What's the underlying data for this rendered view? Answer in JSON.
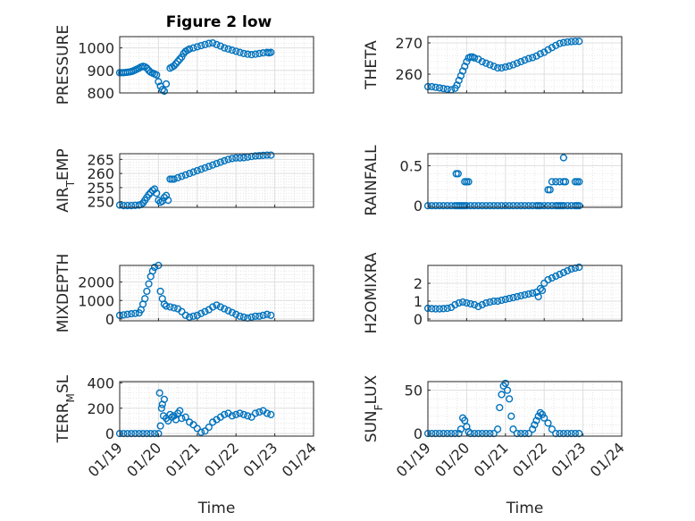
{
  "figure": {
    "title": "Figure 2 low"
  },
  "colors": {
    "marker": "#0072BD",
    "axis": "#262626",
    "grid": "#dfdfdf"
  },
  "time_ticks": [
    "01/19",
    "01/20",
    "01/21",
    "01/22",
    "01/23",
    "01/24"
  ],
  "time_axis_label": "Time",
  "chart_data": [
    {
      "id": "pressure",
      "type": "scatter",
      "ylabel": "PRESSURE",
      "xlim": [
        19,
        24
      ],
      "ylim": [
        800,
        1050
      ],
      "yticks": [
        800,
        900,
        1000
      ],
      "grid": true,
      "xticklabels_visible": false,
      "series": [
        {
          "x": [
            19.0,
            19.05,
            19.1,
            19.15,
            19.2,
            19.25,
            19.3,
            19.35,
            19.4,
            19.45,
            19.5,
            19.55,
            19.6,
            19.65,
            19.7,
            19.75,
            19.8,
            19.85,
            19.9,
            19.95,
            20.0,
            20.05,
            20.1,
            20.15,
            20.2,
            20.3,
            20.35,
            20.4,
            20.45,
            20.5,
            20.55,
            20.6,
            20.65,
            20.7,
            20.75,
            20.8,
            20.9,
            21.0,
            21.1,
            21.2,
            21.3,
            21.4,
            21.5,
            21.6,
            21.7,
            21.8,
            21.9,
            22.0,
            22.1,
            22.2,
            22.3,
            22.4,
            22.5,
            22.6,
            22.7,
            22.8,
            22.85,
            22.9
          ],
          "y": [
            890,
            890,
            890,
            891,
            892,
            893,
            895,
            898,
            902,
            906,
            910,
            915,
            918,
            916,
            910,
            900,
            892,
            888,
            884,
            880,
            850,
            830,
            815,
            808,
            840,
            910,
            915,
            920,
            930,
            940,
            950,
            960,
            975,
            985,
            990,
            995,
            1000,
            1005,
            1010,
            1015,
            1020,
            1022,
            1015,
            1008,
            1000,
            995,
            990,
            985,
            980,
            975,
            972,
            970,
            972,
            975,
            978,
            980,
            978,
            980
          ]
        }
      ]
    },
    {
      "id": "theta",
      "type": "scatter",
      "ylabel": "THETA",
      "xlim": [
        19,
        24
      ],
      "ylim": [
        254,
        272
      ],
      "yticks": [
        260,
        270
      ],
      "grid": true,
      "xticklabels_visible": false,
      "series": [
        {
          "x": [
            19.0,
            19.1,
            19.2,
            19.3,
            19.4,
            19.5,
            19.6,
            19.7,
            19.75,
            19.8,
            19.85,
            19.9,
            19.95,
            20.0,
            20.05,
            20.1,
            20.15,
            20.2,
            20.3,
            20.4,
            20.5,
            20.6,
            20.7,
            20.8,
            20.9,
            21.0,
            21.1,
            21.2,
            21.3,
            21.4,
            21.5,
            21.6,
            21.7,
            21.8,
            21.9,
            22.0,
            22.1,
            22.2,
            22.3,
            22.4,
            22.5,
            22.6,
            22.7,
            22.8,
            22.9
          ],
          "y": [
            256,
            256,
            255.8,
            255.6,
            255.4,
            255.2,
            255.0,
            255.5,
            256.5,
            258,
            259.5,
            261,
            262.5,
            264,
            265.2,
            265.5,
            265.5,
            265.2,
            264.8,
            264,
            263.5,
            263,
            262.5,
            262,
            262,
            262.3,
            262.6,
            263,
            263.5,
            264,
            264.5,
            265,
            265.3,
            265.8,
            266.5,
            267,
            267.8,
            268.5,
            269.2,
            269.8,
            270.1,
            270.3,
            270.4,
            270.5,
            270.5
          ]
        }
      ]
    },
    {
      "id": "air_temp",
      "type": "scatter",
      "ylabel": "AIR_TEMP",
      "xlim": [
        19,
        24
      ],
      "ylim": [
        248,
        267
      ],
      "yticks": [
        250,
        255,
        260,
        265
      ],
      "grid": true,
      "xticklabels_visible": false,
      "series": [
        {
          "x": [
            19.0,
            19.1,
            19.2,
            19.3,
            19.4,
            19.5,
            19.55,
            19.6,
            19.65,
            19.7,
            19.75,
            19.8,
            19.85,
            19.9,
            19.95,
            20.0,
            20.05,
            20.1,
            20.15,
            20.2,
            20.25,
            20.3,
            20.35,
            20.4,
            20.5,
            20.6,
            20.7,
            20.8,
            20.9,
            21.0,
            21.1,
            21.2,
            21.3,
            21.4,
            21.5,
            21.6,
            21.7,
            21.8,
            21.9,
            22.0,
            22.1,
            22.2,
            22.3,
            22.4,
            22.5,
            22.6,
            22.7,
            22.8,
            22.9
          ],
          "y": [
            248.8,
            248.6,
            248.6,
            248.6,
            248.7,
            248.8,
            249,
            249.5,
            250.5,
            251.5,
            252.5,
            253.2,
            254,
            254.5,
            253,
            250.5,
            249.8,
            250.2,
            251.5,
            252.2,
            250.5,
            258,
            258,
            258,
            258.5,
            259,
            259.5,
            260,
            260.5,
            261,
            261.5,
            262,
            262.5,
            263,
            263.5,
            264,
            264.5,
            265,
            265.3,
            265.5,
            265.5,
            265.6,
            265.8,
            266,
            266.2,
            266.3,
            266.4,
            266.5,
            266.5
          ]
        }
      ]
    },
    {
      "id": "rainfall",
      "type": "scatter",
      "ylabel": "RAINFALL",
      "xlim": [
        19,
        24
      ],
      "ylim": [
        -0.02,
        0.65
      ],
      "yticks": [
        0,
        0.5
      ],
      "grid": true,
      "xticklabels_visible": false,
      "series": [
        {
          "x": [
            19.0,
            19.1,
            19.2,
            19.3,
            19.4,
            19.5,
            19.6,
            19.7,
            19.75,
            19.8,
            19.85,
            19.9,
            19.95,
            20.0,
            20.1,
            20.2,
            20.3,
            20.4,
            20.5,
            20.6,
            20.7,
            20.8,
            20.9,
            21.0,
            21.1,
            21.2,
            21.3,
            21.4,
            21.5,
            21.6,
            21.7,
            21.8,
            21.85,
            21.9,
            22.0,
            22.1,
            22.2,
            22.3,
            22.35,
            22.4,
            22.45,
            22.5,
            22.6,
            22.7,
            22.8,
            22.85,
            22.9,
            19.73,
            19.78,
            19.95,
            20.0,
            20.05,
            22.1,
            22.15,
            22.2,
            22.3,
            22.4,
            22.5,
            22.55,
            22.8,
            22.85,
            22.9,
            22.5
          ],
          "y": [
            0,
            0,
            0,
            0,
            0,
            0,
            0,
            0,
            0,
            0,
            0,
            0,
            0,
            0,
            0,
            0,
            0,
            0,
            0,
            0,
            0,
            0,
            0,
            0,
            0,
            0,
            0,
            0,
            0,
            0,
            0,
            0,
            0,
            0,
            0,
            0,
            0,
            0,
            0,
            0,
            0,
            0,
            0,
            0,
            0,
            0,
            0,
            0.4,
            0.4,
            0.3,
            0.3,
            0.3,
            0.2,
            0.2,
            0.3,
            0.3,
            0.3,
            0.3,
            0.3,
            0.3,
            0.3,
            0.3,
            0.6
          ]
        }
      ]
    },
    {
      "id": "mixdepth",
      "type": "scatter",
      "ylabel": "MIXDEPTH",
      "xlim": [
        19,
        24
      ],
      "ylim": [
        -100,
        2900
      ],
      "yticks": [
        0,
        1000,
        2000
      ],
      "grid": true,
      "xticklabels_visible": false,
      "series": [
        {
          "x": [
            19.0,
            19.1,
            19.2,
            19.3,
            19.4,
            19.5,
            19.55,
            19.6,
            19.65,
            19.7,
            19.75,
            19.8,
            19.85,
            19.9,
            19.95,
            20.0,
            20.05,
            20.1,
            20.15,
            20.2,
            20.3,
            20.4,
            20.5,
            20.6,
            20.7,
            20.8,
            20.9,
            21.0,
            21.1,
            21.2,
            21.3,
            21.4,
            21.5,
            21.6,
            21.7,
            21.8,
            21.9,
            22.0,
            22.1,
            22.2,
            22.3,
            22.4,
            22.5,
            22.6,
            22.7,
            22.8,
            22.9
          ],
          "y": [
            200,
            220,
            250,
            280,
            300,
            330,
            500,
            800,
            1100,
            1500,
            1900,
            2300,
            2600,
            2800,
            2950,
            2900,
            1500,
            1100,
            800,
            700,
            650,
            600,
            550,
            400,
            200,
            100,
            150,
            200,
            300,
            400,
            500,
            650,
            750,
            650,
            550,
            450,
            350,
            250,
            150,
            100,
            50,
            100,
            150,
            150,
            200,
            250,
            200
          ]
        }
      ]
    },
    {
      "id": "h2omixra",
      "type": "scatter",
      "ylabel": "H2OMIXRA",
      "xlim": [
        19,
        24
      ],
      "ylim": [
        -0.1,
        3.0
      ],
      "yticks": [
        0,
        1,
        2
      ],
      "grid": true,
      "xticklabels_visible": false,
      "series": [
        {
          "x": [
            19.0,
            19.1,
            19.2,
            19.3,
            19.4,
            19.5,
            19.6,
            19.7,
            19.8,
            19.9,
            20.0,
            20.1,
            20.2,
            20.3,
            20.4,
            20.5,
            20.6,
            20.7,
            20.8,
            20.9,
            21.0,
            21.1,
            21.2,
            21.3,
            21.4,
            21.5,
            21.6,
            21.7,
            21.8,
            21.9,
            22.0,
            22.1,
            22.2,
            22.3,
            22.4,
            22.5,
            22.6,
            22.7,
            22.8,
            22.9,
            21.85,
            21.95
          ],
          "y": [
            0.6,
            0.58,
            0.57,
            0.57,
            0.58,
            0.6,
            0.65,
            0.8,
            0.9,
            0.95,
            0.9,
            0.85,
            0.8,
            0.7,
            0.8,
            0.9,
            0.95,
            1.0,
            1.0,
            1.05,
            1.1,
            1.15,
            1.2,
            1.25,
            1.3,
            1.35,
            1.4,
            1.45,
            1.5,
            1.7,
            2.0,
            2.2,
            2.3,
            2.4,
            2.5,
            2.6,
            2.7,
            2.8,
            2.85,
            2.9,
            1.25,
            1.6
          ]
        }
      ]
    },
    {
      "id": "terr_msl",
      "type": "scatter",
      "ylabel": "TERR_MSL",
      "xlim": [
        19,
        24
      ],
      "ylim": [
        -20,
        410
      ],
      "yticks": [
        0,
        200,
        400
      ],
      "grid": true,
      "xticklabels_visible": true,
      "series": [
        {
          "x": [
            19.0,
            19.1,
            19.2,
            19.3,
            19.4,
            19.5,
            19.6,
            19.7,
            19.8,
            19.9,
            20.0,
            20.03,
            20.05,
            20.08,
            20.1,
            20.13,
            20.15,
            20.2,
            20.25,
            20.3,
            20.35,
            20.4,
            20.45,
            20.5,
            20.55,
            20.6,
            20.7,
            20.8,
            20.9,
            21.0,
            21.1,
            21.2,
            21.3,
            21.4,
            21.5,
            21.6,
            21.7,
            21.8,
            21.9,
            22.0,
            22.1,
            22.2,
            22.3,
            22.4,
            22.5,
            22.6,
            22.7,
            22.8,
            22.9
          ],
          "y": [
            0,
            0,
            0,
            0,
            0,
            0,
            0,
            0,
            0,
            0,
            0,
            320,
            60,
            200,
            230,
            140,
            270,
            120,
            100,
            150,
            130,
            140,
            110,
            160,
            180,
            120,
            130,
            90,
            70,
            40,
            10,
            20,
            50,
            90,
            110,
            130,
            150,
            160,
            140,
            150,
            160,
            150,
            140,
            130,
            160,
            170,
            180,
            160,
            150
          ]
        }
      ]
    },
    {
      "id": "sun_flux",
      "type": "scatter",
      "ylabel": "SUN_FLUX",
      "xlim": [
        19,
        24
      ],
      "ylim": [
        -3,
        60
      ],
      "yticks": [
        0,
        50
      ],
      "grid": true,
      "xticklabels_visible": true,
      "series": [
        {
          "x": [
            19.0,
            19.1,
            19.2,
            19.3,
            19.4,
            19.5,
            19.6,
            19.7,
            19.8,
            19.85,
            19.9,
            19.95,
            20.0,
            20.05,
            20.1,
            20.2,
            20.3,
            20.4,
            20.5,
            20.6,
            20.7,
            20.8,
            20.85,
            20.9,
            20.95,
            21.0,
            21.05,
            21.1,
            21.15,
            21.2,
            21.3,
            21.4,
            21.5,
            21.6,
            21.7,
            21.75,
            21.8,
            21.85,
            21.9,
            21.95,
            22.0,
            22.1,
            22.2,
            22.3,
            22.4,
            22.5,
            22.6,
            22.7,
            22.8,
            22.9
          ],
          "y": [
            0,
            0,
            0,
            0,
            0,
            0,
            0,
            0,
            0,
            5,
            18,
            15,
            8,
            2,
            0,
            0,
            0,
            0,
            0,
            0,
            0,
            5,
            30,
            45,
            55,
            58,
            50,
            40,
            20,
            5,
            0,
            0,
            0,
            0,
            5,
            10,
            15,
            20,
            24,
            22,
            18,
            12,
            5,
            0,
            0,
            0,
            0,
            0,
            0,
            0
          ]
        }
      ]
    }
  ]
}
